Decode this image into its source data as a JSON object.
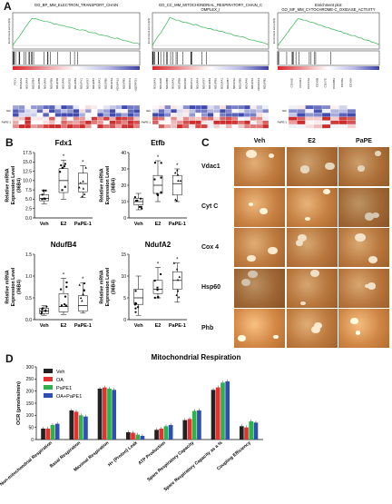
{
  "panels": {
    "A": "A",
    "B": "B",
    "C": "C",
    "D": "D"
  },
  "gsea": [
    {
      "title": "GO_BP_MM_ELECTRON_TRANSPORT_CHAIN",
      "genes": [
        "FDX1",
        "NDUFA2",
        "NDUFA4",
        "NDUFB4",
        "NDUFB8",
        "NDUFA6",
        "NDUFB9",
        "NDUFS8",
        "NDUFA8",
        "NDUFS2",
        "NDUFB3",
        "NDUFV1",
        "NDUFS7",
        "NDUFB7",
        "NDUFA1",
        "NDUFB5",
        "NDUFS3",
        "NDUFA13",
        "NDUFB2",
        "NDUFC2",
        "UQCRFS1"
      ]
    },
    {
      "title": "GO_CC_MM_MITOCHONDRIAL_RESPIRATORY_CHAIN_C OMPLEX_I",
      "genes": [
        "NDUFA3",
        "NDUFA8",
        "NDUFB8",
        "NDUFA2",
        "NDUFB9",
        "NDUFS8",
        "NDUFV1",
        "NDUFA4",
        "NDUFS7",
        "NDUFB4",
        "NDUFB3",
        "NDUFA1",
        "NDUFB7",
        "NDUFS2",
        "NDUFB5",
        "NDUFA6",
        "NDUFS3",
        "NDUFA13",
        "NDUFB2"
      ]
    },
    {
      "title": "Enrichment plot: GO_MF_MM_CYTOCHROME-C_OXIDASE_ACTIVITY",
      "genes": [
        "COX6C",
        "COX4I1",
        "COX7A2",
        "COX5B",
        "COX7C",
        "COX6B1",
        "COX8A",
        "COX5A"
      ]
    }
  ],
  "gsea_side": {
    "veh": "Veh",
    "pape": "PaPE-1"
  },
  "gsea_ylabel": "Enrichment score (ES)",
  "panelB": [
    {
      "title": "Fdx1",
      "ylabel": "Relative mRNA Expression Level (36B4)",
      "yticks": [
        "0.0",
        "2.5",
        "5.0",
        "7.5",
        "10.0",
        "12.5",
        "15.0",
        "17.5"
      ],
      "groups": [
        "Veh",
        "E2",
        "PaPE-1"
      ],
      "chart_data": {
        "type": "box",
        "categories": [
          "Veh",
          "E2",
          "PaPE-1"
        ],
        "ylim": [
          0,
          17.5
        ],
        "median": [
          5.2,
          10.0,
          9.2
        ],
        "q1": [
          4.6,
          6.8,
          7.0
        ],
        "q3": [
          6.2,
          13.2,
          12.0
        ],
        "min": [
          3.8,
          5.0,
          5.5
        ],
        "max": [
          7.5,
          15.5,
          14.0
        ]
      }
    },
    {
      "title": "Etfb",
      "ylabel": "Relative mRNA Expression Level (36B4)",
      "yticks": [
        "0",
        "10",
        "20",
        "30",
        "40"
      ],
      "groups": [
        "Veh",
        "E2",
        "PaPE-1"
      ],
      "chart_data": {
        "type": "box",
        "categories": [
          "Veh",
          "E2",
          "PaPE-1"
        ],
        "ylim": [
          0,
          40
        ],
        "median": [
          10,
          20,
          21
        ],
        "q1": [
          8,
          15,
          14
        ],
        "q3": [
          12,
          26,
          26
        ],
        "min": [
          5,
          10,
          10
        ],
        "max": [
          15,
          35,
          30
        ]
      }
    },
    {
      "title": "NdufB4",
      "ylabel": "Relative mRNA Expression Level (36B4)",
      "yticks": [
        "0.0",
        "0.5",
        "1.0",
        "1.5"
      ],
      "groups": [
        "Veh",
        "E2",
        "PaPE-1"
      ],
      "chart_data": {
        "type": "box",
        "categories": [
          "Veh",
          "E2",
          "PaPE-1"
        ],
        "ylim": [
          0,
          1.5
        ],
        "median": [
          0.2,
          0.3,
          0.32
        ],
        "q1": [
          0.14,
          0.18,
          0.2
        ],
        "q3": [
          0.26,
          0.6,
          0.55
        ],
        "min": [
          0.1,
          0.12,
          0.15
        ],
        "max": [
          0.32,
          0.95,
          0.85
        ]
      }
    },
    {
      "title": "NdufA2",
      "ylabel": "Relative mRNA Expression Level (36B4)",
      "yticks": [
        "0",
        "5",
        "10",
        "15"
      ],
      "groups": [
        "Veh",
        "E2",
        "PaPE-1"
      ],
      "chart_data": {
        "type": "box",
        "categories": [
          "Veh",
          "E2",
          "PaPE-1"
        ],
        "ylim": [
          0,
          15
        ],
        "median": [
          5,
          7,
          9
        ],
        "q1": [
          3.5,
          6,
          7
        ],
        "q3": [
          7,
          9,
          11
        ],
        "min": [
          1,
          5,
          4
        ],
        "max": [
          10,
          12,
          13
        ]
      }
    }
  ],
  "panelC": {
    "columns": [
      "Veh",
      "E2",
      "PaPE"
    ],
    "rows": [
      "Vdac1",
      "Cyt C",
      "Cox 4",
      "Hsp60",
      "Phb"
    ]
  },
  "panelD": {
    "title": "Mitochondrial Respiration",
    "ylabel": "OCR (pmoles/min)",
    "legend": [
      "Veh",
      "OA",
      "PaPE1",
      "OA+PaPE1"
    ],
    "colors": [
      "#222222",
      "#e8302e",
      "#2db34a",
      "#2f4fb5"
    ],
    "yticks": [
      "0",
      "50",
      "100",
      "150",
      "200",
      "250",
      "300"
    ],
    "chart_data": {
      "type": "bar",
      "ylim": [
        0,
        300
      ],
      "categories": [
        "Non-mitochondrial Respiration",
        "Basal Respiration",
        "Maximal Respiration",
        "H+ (Proton) Leak",
        "ATP Production",
        "Spare Respiratory Capacity",
        "Spare Respiratory Capacity as a %",
        "Coupling Efficiency"
      ],
      "series": [
        {
          "name": "Veh",
          "values": [
            45,
            120,
            210,
            30,
            40,
            80,
            205,
            55
          ]
        },
        {
          "name": "OA",
          "values": [
            45,
            115,
            215,
            28,
            45,
            85,
            215,
            50
          ]
        },
        {
          "name": "PaPE1",
          "values": [
            60,
            100,
            210,
            20,
            55,
            118,
            235,
            75
          ]
        },
        {
          "name": "OA+PaPE1",
          "values": [
            65,
            95,
            205,
            15,
            60,
            120,
            240,
            70
          ]
        }
      ]
    }
  }
}
